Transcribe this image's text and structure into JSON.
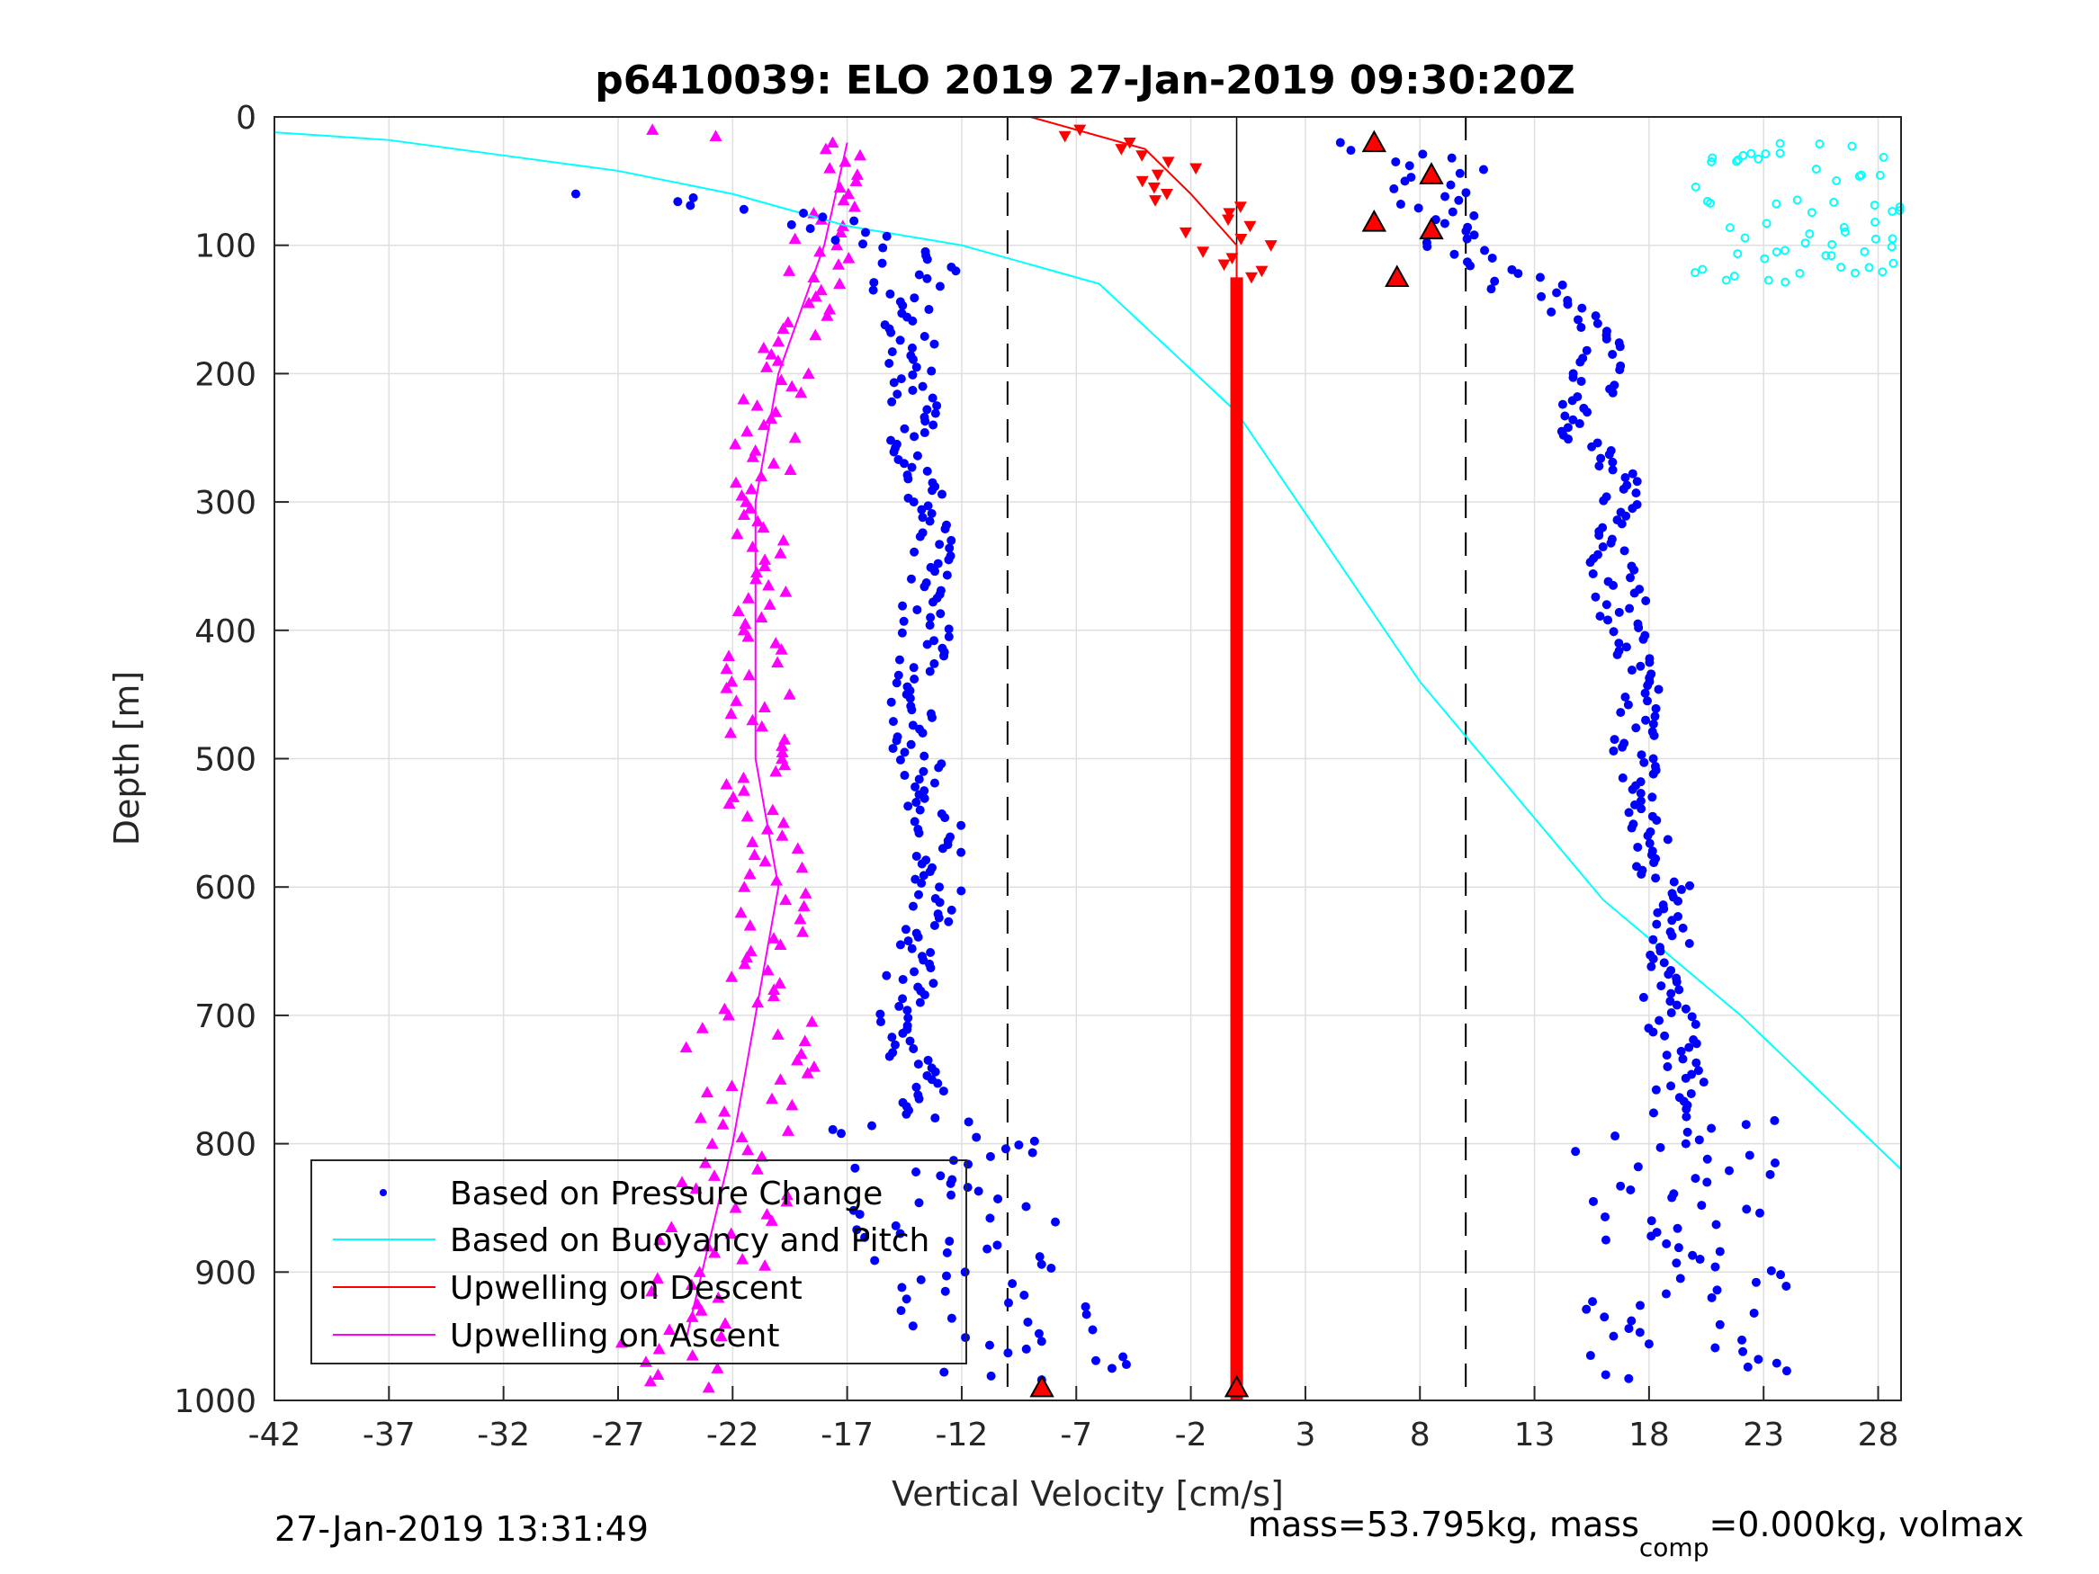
{
  "chart_data": {
    "type": "scatter",
    "title": "p6410039: ELO 2019 27-Jan-2019 09:30:20Z",
    "xlabel": "Vertical Velocity [cm/s]",
    "ylabel": "Depth [m]",
    "xlim": [
      -42,
      29
    ],
    "ylim": [
      0,
      1000
    ],
    "y_reversed": true,
    "grid": true,
    "xticks": [
      -42,
      -37,
      -32,
      -27,
      -22,
      -17,
      -12,
      -7,
      -2,
      3,
      8,
      13,
      18,
      23,
      28
    ],
    "xtick_labels": [
      "-42",
      "-37",
      "-32",
      "-27",
      "-22",
      "-17",
      "-12",
      "-7",
      "-2",
      "3",
      "8",
      "13",
      "18",
      "23",
      "28"
    ],
    "yticks": [
      0,
      100,
      200,
      300,
      400,
      500,
      600,
      700,
      800,
      900,
      1000
    ],
    "ytick_labels": [
      "0",
      "100",
      "200",
      "300",
      "400",
      "500",
      "600",
      "700",
      "800",
      "900",
      "1000"
    ],
    "reference_lines": {
      "dashed_x": [
        -10,
        10
      ],
      "solid_x": [
        0
      ]
    },
    "legend": {
      "position": "lower-left",
      "entries": [
        {
          "label": "Based on Pressure Change",
          "color": "#0000ff",
          "marker": "dot"
        },
        {
          "label": "Based on Buoyancy and Pitch",
          "color": "#00ffff",
          "marker": "line"
        },
        {
          "label": "Upwelling on Descent",
          "color": "#ff0000",
          "marker": "line"
        },
        {
          "label": "Upwelling on Ascent",
          "color": "#ff00ff",
          "marker": "line"
        }
      ]
    },
    "series": [
      {
        "name": "Based on Pressure Change",
        "color": "#0000ff",
        "style": "dots",
        "branches": [
          {
            "label": "descent",
            "x": [
              6,
              9,
              8.5,
              12,
              14.5,
              16,
              15,
              17,
              16.5,
              17,
              17.5,
              17.5,
              18,
              19.5,
              18.5,
              19.5,
              19,
              20,
              19.5,
              20
            ],
            "y": [
              20,
              40,
              80,
              125,
              150,
              180,
              240,
              300,
              350,
              400,
              460,
              520,
              580,
              610,
              680,
              740,
              800,
              870,
              930,
              985
            ]
          },
          {
            "label": "ascent",
            "x": [
              -8.5,
              -10,
              -12,
              -13,
              -14,
              -14.5,
              -14,
              -13,
              -13,
              -14,
              -14,
              -13.5,
              -13.5,
              -13.5,
              -14,
              -14,
              -14.5,
              -14.5,
              -14,
              -16,
              -18,
              -27
            ],
            "y": [
              985,
              940,
              880,
              800,
              740,
              700,
              650,
              600,
              550,
              500,
              450,
              400,
              350,
              310,
              260,
              200,
              160,
              130,
              110,
              95,
              80,
              60
            ]
          }
        ]
      },
      {
        "name": "Based on Buoyancy and Pitch",
        "color": "#00ffff",
        "style": "line",
        "x": [
          -42,
          -37,
          -32,
          -27,
          -22,
          -17,
          -12,
          -8,
          -6,
          0,
          8,
          16,
          22,
          29
        ],
        "y": [
          12,
          18,
          30,
          42,
          60,
          85,
          100,
          120,
          130,
          230,
          440,
          610,
          700,
          820
        ]
      },
      {
        "name": "Upwelling on Descent",
        "color": "#ff0000",
        "style": "line-triangles",
        "x": [
          -9,
          -4,
          -2,
          0,
          0,
          0
        ],
        "y": [
          0,
          25,
          60,
          100,
          125,
          1000
        ]
      },
      {
        "name": "Upwelling on Ascent",
        "color": "#ff00ff",
        "style": "line-triangles",
        "x": [
          -17,
          -18,
          -20,
          -21,
          -21,
          -21,
          -20,
          -21,
          -22,
          -24
        ],
        "y": [
          20,
          100,
          200,
          300,
          400,
          500,
          600,
          700,
          800,
          950
        ]
      }
    ]
  },
  "footer": {
    "timestamp": "27-Jan-2019 13:31:49",
    "mass_text": "mass=53.795kg, mass",
    "mass_sub": "comp",
    "mass_rest": "=0.000kg, volmax"
  }
}
